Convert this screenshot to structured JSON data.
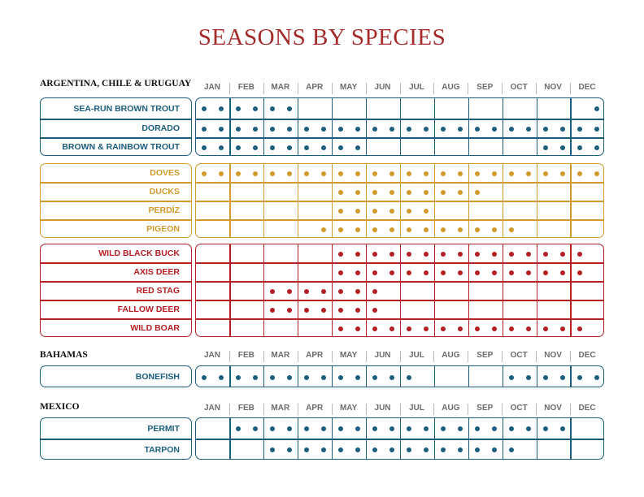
{
  "title": "SEASONS BY SPECIES",
  "months": [
    "JAN",
    "FEB",
    "MAR",
    "APR",
    "MAY",
    "JUN",
    "JUL",
    "AUG",
    "SEP",
    "OCT",
    "NOV",
    "DEC"
  ],
  "colors": {
    "title": "#a52a2a",
    "blue": "#1b5e7e",
    "gold": "#d19a2a",
    "red": "#b51f24"
  },
  "sections": [
    {
      "heading": "ARGENTINA, CHILE & URUGUAY",
      "groups": [
        {
          "color": "blue",
          "rows": [
            {
              "label": "SEA-RUN BROWN TROUT",
              "halfmonths": [
                1,
                1,
                1,
                1,
                1,
                1,
                0,
                0,
                0,
                0,
                0,
                0,
                0,
                0,
                0,
                0,
                0,
                0,
                0,
                0,
                0,
                0,
                0,
                1
              ]
            },
            {
              "label": "DORADO",
              "halfmonths": [
                1,
                1,
                1,
                1,
                1,
                1,
                1,
                1,
                1,
                1,
                1,
                1,
                1,
                1,
                1,
                1,
                1,
                1,
                1,
                1,
                1,
                1,
                1,
                1
              ]
            },
            {
              "label": "BROWN & RAINBOW TROUT",
              "halfmonths": [
                1,
                1,
                1,
                1,
                1,
                1,
                1,
                1,
                1,
                1,
                0,
                0,
                0,
                0,
                0,
                0,
                0,
                0,
                0,
                0,
                1,
                1,
                1,
                1
              ]
            }
          ]
        },
        {
          "color": "gold",
          "rows": [
            {
              "label": "DOVES",
              "halfmonths": [
                1,
                1,
                1,
                1,
                1,
                1,
                1,
                1,
                1,
                1,
                1,
                1,
                1,
                1,
                1,
                1,
                1,
                1,
                1,
                1,
                1,
                1,
                1,
                1
              ]
            },
            {
              "label": "DUCKS",
              "halfmonths": [
                0,
                0,
                0,
                0,
                0,
                0,
                0,
                0,
                1,
                1,
                1,
                1,
                1,
                1,
                1,
                1,
                1,
                0,
                0,
                0,
                0,
                0,
                0,
                0
              ]
            },
            {
              "label": "PERDÍZ",
              "halfmonths": [
                0,
                0,
                0,
                0,
                0,
                0,
                0,
                0,
                1,
                1,
                1,
                1,
                1,
                1,
                0,
                0,
                0,
                0,
                0,
                0,
                0,
                0,
                0,
                0
              ]
            },
            {
              "label": "PIGEON",
              "halfmonths": [
                0,
                0,
                0,
                0,
                0,
                0,
                0,
                1,
                1,
                1,
                1,
                1,
                1,
                1,
                1,
                1,
                1,
                1,
                1,
                0,
                0,
                0,
                0,
                0
              ]
            }
          ]
        },
        {
          "color": "red",
          "rows": [
            {
              "label": "WILD BLACK BUCK",
              "halfmonths": [
                0,
                0,
                0,
                0,
                0,
                0,
                0,
                0,
                1,
                1,
                1,
                1,
                1,
                1,
                1,
                1,
                1,
                1,
                1,
                1,
                1,
                1,
                1,
                0
              ]
            },
            {
              "label": "AXIS DEER",
              "halfmonths": [
                0,
                0,
                0,
                0,
                0,
                0,
                0,
                0,
                1,
                1,
                1,
                1,
                1,
                1,
                1,
                1,
                1,
                1,
                1,
                1,
                1,
                1,
                1,
                0
              ]
            },
            {
              "label": "RED STAG",
              "halfmonths": [
                0,
                0,
                0,
                0,
                1,
                1,
                1,
                1,
                1,
                1,
                1,
                0,
                0,
                0,
                0,
                0,
                0,
                0,
                0,
                0,
                0,
                0,
                0,
                0
              ]
            },
            {
              "label": "FALLOW DEER",
              "halfmonths": [
                0,
                0,
                0,
                0,
                1,
                1,
                1,
                1,
                1,
                1,
                1,
                0,
                0,
                0,
                0,
                0,
                0,
                0,
                0,
                0,
                0,
                0,
                0,
                0
              ]
            },
            {
              "label": "WILD BOAR",
              "halfmonths": [
                0,
                0,
                0,
                0,
                0,
                0,
                0,
                0,
                1,
                1,
                1,
                1,
                1,
                1,
                1,
                1,
                1,
                1,
                1,
                1,
                1,
                1,
                1,
                0
              ]
            }
          ]
        }
      ]
    },
    {
      "heading": "BAHAMAS",
      "groups": [
        {
          "color": "blue",
          "rows": [
            {
              "label": "BONEFISH",
              "halfmonths": [
                1,
                1,
                1,
                1,
                1,
                1,
                1,
                1,
                1,
                1,
                1,
                1,
                1,
                0,
                0,
                0,
                0,
                0,
                1,
                1,
                1,
                1,
                1,
                1
              ]
            }
          ]
        }
      ]
    },
    {
      "heading": "MEXICO",
      "groups": [
        {
          "color": "blue",
          "rows": [
            {
              "label": "PERMIT",
              "halfmonths": [
                0,
                0,
                1,
                1,
                1,
                1,
                1,
                1,
                1,
                1,
                1,
                1,
                1,
                1,
                1,
                1,
                1,
                1,
                1,
                1,
                1,
                1,
                0,
                0
              ]
            },
            {
              "label": "TARPON",
              "halfmonths": [
                0,
                0,
                0,
                0,
                1,
                1,
                1,
                1,
                1,
                1,
                1,
                1,
                1,
                1,
                1,
                1,
                1,
                1,
                1,
                0,
                0,
                0,
                0,
                0
              ]
            }
          ]
        }
      ]
    }
  ]
}
